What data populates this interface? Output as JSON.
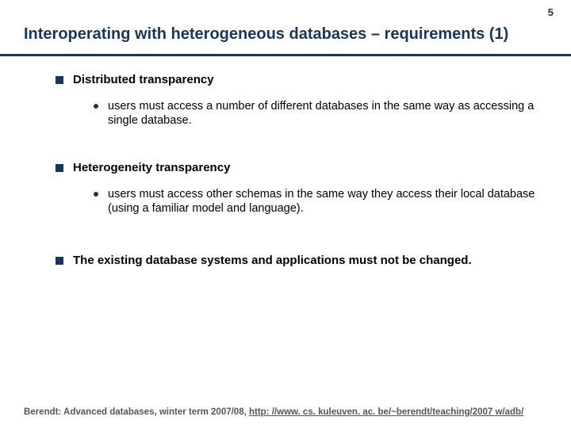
{
  "page_number": "5",
  "title": "Interoperating with heterogeneous databases – requirements (1)",
  "colors": {
    "accent": "#18365d",
    "text": "#000000",
    "footer": "#555555",
    "background": "#ffffff"
  },
  "bullets": {
    "b1": {
      "heading": "Distributed transparency",
      "sub": "users must access a number of different databases in the same way as accessing a single database."
    },
    "b2": {
      "heading": "Heterogeneity transparency",
      "sub": "users must access other schemas in the same way they access their local database (using a familiar model and language)."
    },
    "b3": {
      "heading": "The existing database systems and applications must not be changed."
    }
  },
  "footer": {
    "prefix": "Berendt: Advanced databases, winter term 2007/08, ",
    "link_text": "http: //www. cs. kuleuven. ac. be/~berendt/teaching/2007 w/adb/",
    "link_href": "http://www.cs.kuleuven.ac.be/~berendt/teaching/2007w/adb/"
  }
}
